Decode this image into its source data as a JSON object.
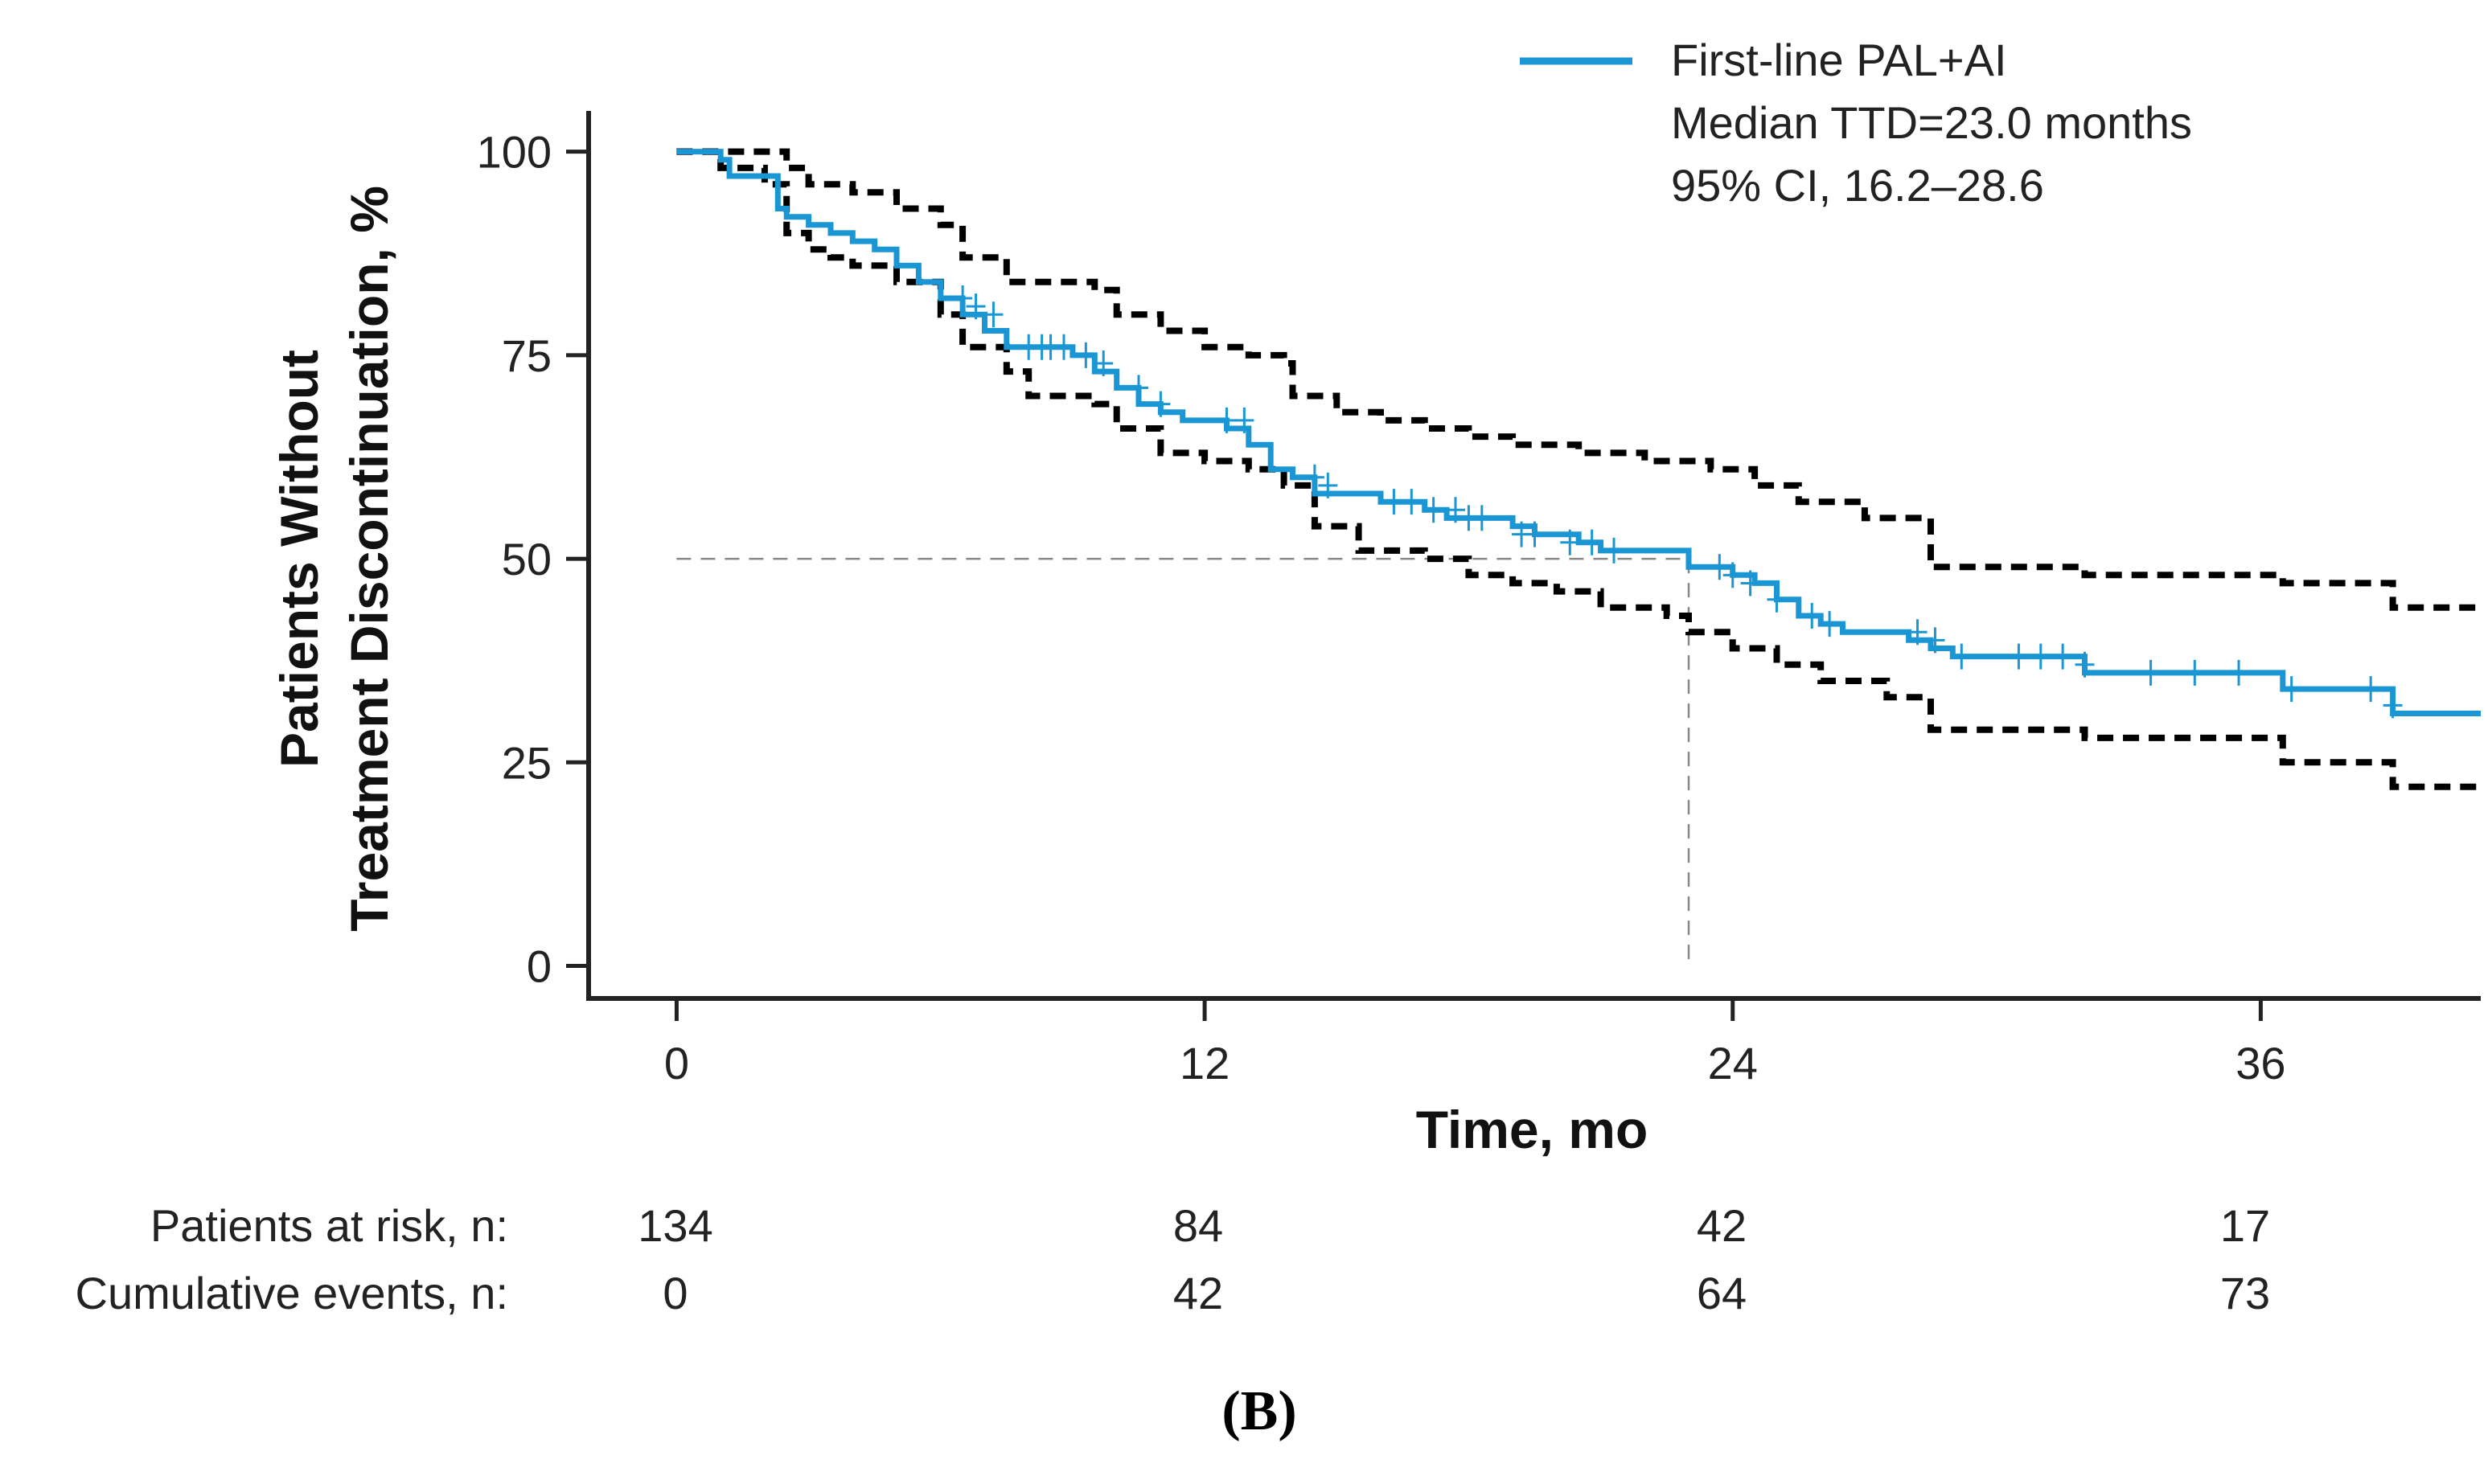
{
  "chart_data": {
    "type": "line",
    "panel_label": "(B)",
    "title": "",
    "xlabel": "Time, mo",
    "ylabel": [
      "Patients Without",
      "Treatment Discontinuation, %"
    ],
    "xlim": [
      -2,
      41
    ],
    "ylim": [
      -4,
      105
    ],
    "x_ticks": [
      0,
      12,
      24,
      36
    ],
    "x_tick_labels": [
      "0",
      "12",
      "24",
      "36"
    ],
    "y_ticks": [
      0,
      25,
      50,
      75,
      100
    ],
    "y_tick_labels": [
      "0",
      "25",
      "50",
      "75",
      "100"
    ],
    "grid": false,
    "legend": {
      "position": "top-right",
      "entries": [
        {
          "name": "First-line PAL+AI",
          "details": [
            "Median TTD=23.0 months",
            "95% CI, 16.2–28.6"
          ],
          "color": "#1a96d4"
        }
      ]
    },
    "median_reference": {
      "x": 23.0,
      "y": 50
    },
    "series": [
      {
        "name": "First-line PAL+AI",
        "style": "solid",
        "color": "#1a96d4",
        "x": [
          0,
          1.0,
          1.2,
          2.3,
          2.5,
          3.0,
          3.5,
          4.0,
          4.5,
          5.0,
          5.5,
          6.0,
          6.5,
          7.0,
          7.5,
          8.0,
          8.5,
          9.0,
          9.5,
          10.0,
          10.5,
          11.0,
          11.5,
          12.0,
          12.5,
          13.0,
          13.5,
          14.0,
          14.5,
          15.0,
          16.0,
          17.0,
          17.5,
          18.0,
          18.5,
          19.0,
          19.5,
          20.0,
          20.5,
          21.0,
          22.0,
          22.5,
          23.0,
          23.5,
          24.0,
          24.5,
          25.0,
          25.5,
          26.0,
          26.5,
          27.0,
          28.0,
          28.5,
          29.0,
          32.0,
          36.5,
          39.0,
          41.0
        ],
        "y": [
          100,
          99,
          97,
          93,
          92,
          91,
          90,
          89,
          88,
          86,
          84,
          82,
          80,
          78,
          76,
          76,
          76,
          75,
          73,
          71,
          69,
          68,
          67,
          67,
          66,
          64,
          61,
          60,
          58,
          58,
          57,
          56,
          55,
          55,
          55,
          54,
          53,
          53,
          52,
          51,
          51,
          51,
          49,
          49,
          48,
          47,
          45,
          43,
          42,
          41,
          41,
          40,
          39,
          38,
          36,
          34,
          31,
          31
        ],
        "censor_x": [
          6.5,
          6.8,
          7.2,
          8.0,
          8.3,
          8.5,
          8.8,
          9.3,
          9.7,
          10.5,
          11.0,
          12.5,
          12.9,
          14.5,
          14.8,
          16.3,
          16.7,
          17.2,
          17.7,
          18.0,
          18.3,
          19.2,
          19.5,
          20.3,
          20.8,
          21.3,
          23.7,
          24.0,
          24.4,
          25.0,
          25.8,
          26.2,
          28.2,
          28.6,
          29.2,
          30.5,
          31.0,
          31.5,
          32.0,
          33.5,
          34.5,
          35.5,
          36.7,
          38.5,
          39.0
        ],
        "censor_y": [
          82,
          81,
          80,
          76,
          76,
          76,
          76,
          75,
          74,
          71,
          69,
          67,
          67,
          60,
          59,
          57,
          57,
          56,
          56,
          55,
          55,
          53,
          53,
          52,
          52,
          51,
          49,
          48,
          47,
          45,
          43,
          42,
          41,
          40,
          38,
          38,
          38,
          38,
          37,
          36,
          36,
          36,
          34,
          34,
          32
        ]
      },
      {
        "name": "95% CI upper",
        "style": "dashed",
        "color": "#000000",
        "x": [
          0,
          2.5,
          3.0,
          4.0,
          5.0,
          6.0,
          6.5,
          7.5,
          9.5,
          10.0,
          11.0,
          12.0,
          13.0,
          13.8,
          14.0,
          15.0,
          16.0,
          17.0,
          18.0,
          19.0,
          20.5,
          22.0,
          23.5,
          24.5,
          25.5,
          27.0,
          28.5,
          32.0,
          36.5,
          39.0,
          41.0
        ],
        "y": [
          100,
          98,
          96,
          95,
          93,
          91,
          87,
          84,
          83,
          80,
          78,
          76,
          75,
          74,
          70,
          68,
          67,
          66,
          65,
          64,
          63,
          62,
          61,
          59,
          57,
          55,
          49,
          48,
          47,
          44,
          44
        ]
      },
      {
        "name": "95% CI lower",
        "style": "dashed",
        "color": "#000000",
        "x": [
          0,
          1.0,
          2.0,
          2.5,
          3.0,
          3.5,
          4.0,
          5.0,
          6.0,
          6.5,
          7.5,
          8.0,
          9.5,
          10.0,
          11.0,
          12.0,
          13.0,
          13.8,
          14.5,
          15.5,
          17.0,
          18.0,
          19.0,
          20.0,
          21.0,
          22.5,
          23.0,
          24.0,
          25.0,
          26.0,
          27.5,
          28.5,
          32.0,
          36.5,
          39.0,
          41.0
        ],
        "y": [
          100,
          98,
          96,
          90,
          88,
          87,
          86,
          84,
          80,
          76,
          73,
          70,
          69,
          66,
          63,
          62,
          61,
          59,
          54,
          51,
          50,
          48,
          47,
          46,
          44,
          43,
          41,
          39,
          37,
          35,
          33,
          29,
          28,
          25,
          22,
          22
        ]
      }
    ],
    "risk_table": {
      "rows": [
        {
          "label": "Patients at risk, n:",
          "values": [
            "134",
            "84",
            "42",
            "17"
          ]
        },
        {
          "label": "Cumulative events, n:",
          "values": [
            "0",
            "42",
            "64",
            "73"
          ]
        }
      ]
    }
  }
}
